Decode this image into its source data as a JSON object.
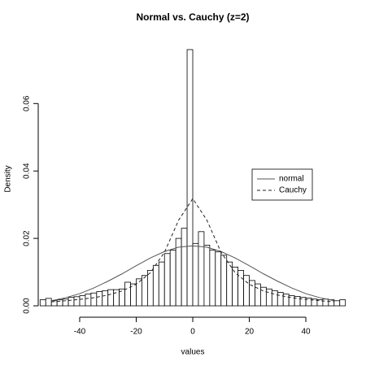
{
  "chart_data": {
    "type": "histogram",
    "title": "Normal vs. Cauchy (z=2)",
    "xlabel": "values",
    "ylabel": "Density",
    "bins": [
      -54,
      -52,
      -50,
      -48,
      -46,
      -44,
      -42,
      -40,
      -38,
      -36,
      -34,
      -32,
      -30,
      -28,
      -26,
      -24,
      -22,
      -20,
      -18,
      -16,
      -14,
      -12,
      -10,
      -8,
      -6,
      -4,
      -2,
      0,
      2,
      4,
      6,
      8,
      10,
      12,
      14,
      16,
      18,
      20,
      22,
      24,
      26,
      28,
      30,
      32,
      34,
      36,
      38,
      40,
      42,
      44,
      46,
      48,
      50,
      52,
      54
    ],
    "values": [
      0.0018,
      0.0022,
      0.0015,
      0.0018,
      0.002,
      0.0025,
      0.0027,
      0.003,
      0.0035,
      0.0038,
      0.0042,
      0.0045,
      0.0048,
      0.0048,
      0.005,
      0.007,
      0.0065,
      0.008,
      0.009,
      0.0105,
      0.012,
      0.013,
      0.0155,
      0.0165,
      0.02,
      0.023,
      0.076,
      0.0185,
      0.022,
      0.018,
      0.0165,
      0.016,
      0.015,
      0.013,
      0.0115,
      0.0105,
      0.009,
      0.0075,
      0.0065,
      0.0055,
      0.005,
      0.0045,
      0.004,
      0.0035,
      0.003,
      0.0028,
      0.0025,
      0.0023,
      0.002,
      0.0018,
      0.002,
      0.0018,
      0.0015,
      0.0018
    ],
    "color": "#ffffff",
    "edge_color": "#000000",
    "xlim": [
      -54,
      54
    ],
    "ylim": [
      0,
      0.076
    ],
    "xticks": [
      -40,
      -20,
      0,
      20,
      40
    ],
    "yticks": [
      {
        "value": 0,
        "label": "0.00"
      },
      {
        "value": 0.02,
        "label": "0.02"
      },
      {
        "value": 0.04,
        "label": "0.04"
      },
      {
        "value": 0.06,
        "label": "0.06"
      }
    ],
    "legend": "right",
    "lines": [
      {
        "name": "normal",
        "color": "#555555",
        "dash": "solid",
        "x": [
          -50,
          -45,
          -40,
          -35,
          -30,
          -25,
          -20,
          -15,
          -10,
          -5,
          0,
          5,
          10,
          15,
          20,
          25,
          30,
          35,
          40,
          45,
          50
        ],
        "values": [
          0.0015,
          0.0024,
          0.0036,
          0.0053,
          0.0073,
          0.0095,
          0.0119,
          0.0142,
          0.0161,
          0.0174,
          0.0178,
          0.0174,
          0.0161,
          0.0142,
          0.0119,
          0.0095,
          0.0073,
          0.0053,
          0.0036,
          0.0024,
          0.0015
        ]
      },
      {
        "name": "Cauchy",
        "color": "#222222",
        "dash": "dashed",
        "x": [
          -50,
          -45,
          -40,
          -35,
          -30,
          -25,
          -20,
          -15,
          -10,
          -5,
          0,
          5,
          10,
          15,
          20,
          25,
          30,
          35,
          40,
          45,
          50
        ],
        "values": [
          0.0012,
          0.0015,
          0.0019,
          0.0024,
          0.0032,
          0.0044,
          0.0064,
          0.0098,
          0.0159,
          0.0254,
          0.0318,
          0.0254,
          0.0159,
          0.0098,
          0.0064,
          0.0044,
          0.0032,
          0.0024,
          0.0019,
          0.0015,
          0.0012
        ]
      }
    ]
  }
}
